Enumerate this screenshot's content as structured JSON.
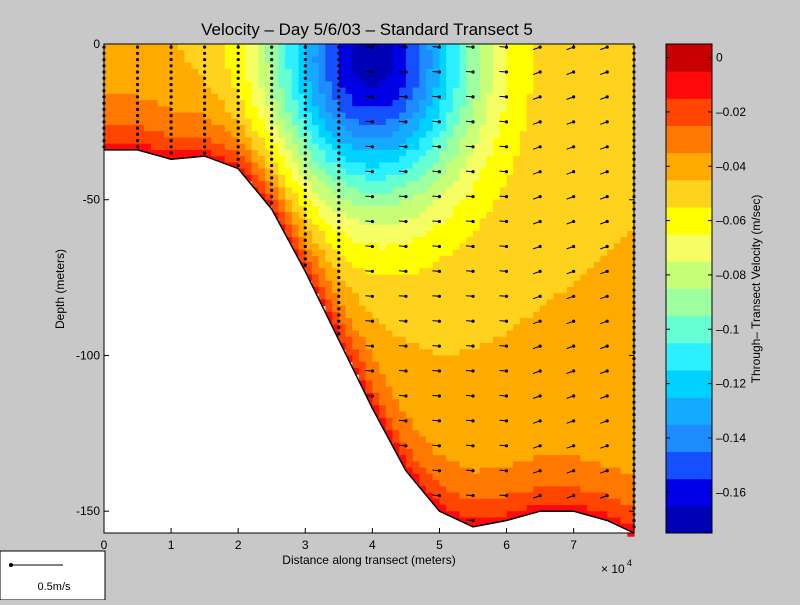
{
  "chart_data": {
    "type": "heatmap",
    "title": "Velocity – Day 5/6/03 – Standard Transect 5",
    "xlabel": "Distance along transect (meters)",
    "ylabel": "Depth (meters)",
    "x_multiplier": "× 10",
    "x_multiplier_exp": "4",
    "xlim": [
      0,
      79000
    ],
    "ylim": [
      -157,
      0
    ],
    "x_ticks": [
      0,
      10000,
      20000,
      30000,
      40000,
      50000,
      60000,
      70000
    ],
    "x_tick_labels": [
      "0",
      "1",
      "2",
      "3",
      "4",
      "5",
      "6",
      "7"
    ],
    "y_ticks": [
      0,
      -50,
      -100,
      -150
    ],
    "y_tick_labels": [
      "0",
      "-50",
      "-100",
      "-150"
    ],
    "grid": false,
    "colorbar": {
      "label": "Through– Transect Velocity (m/sec)",
      "vmin": -0.175,
      "vmax": 0.005,
      "levels": [
        -0.175,
        -0.165,
        -0.155,
        -0.145,
        -0.135,
        -0.125,
        -0.115,
        -0.105,
        -0.095,
        -0.085,
        -0.075,
        -0.065,
        -0.055,
        -0.045,
        -0.035,
        -0.025,
        -0.015,
        -0.005,
        0.005
      ],
      "ticks": [
        0,
        -0.02,
        -0.04,
        -0.06,
        -0.08,
        -0.1,
        -0.12,
        -0.14,
        -0.16
      ],
      "tick_labels": [
        "0",
        "–0.02",
        "–0.04",
        "–0.06",
        "–0.08",
        "–0.1",
        "–0.12",
        "–0.14",
        "–0.16"
      ],
      "colors": [
        "#0000b4",
        "#0000e6",
        "#1450ff",
        "#1e8cff",
        "#14aaff",
        "#00d2ff",
        "#2cf0ff",
        "#64ffd2",
        "#9cffa0",
        "#c8ff78",
        "#f5ff64",
        "#ffff00",
        "#ffd21e",
        "#ffaa00",
        "#ff7800",
        "#ff4600",
        "#ff0a0a",
        "#c80000"
      ]
    },
    "bottom_profile": {
      "x": [
        0,
        5000,
        10000,
        15000,
        20000,
        25000,
        30000,
        35000,
        40000,
        45000,
        50000,
        55000,
        60000,
        65000,
        70000,
        75000,
        79000
      ],
      "depth": [
        -34,
        -34,
        -37,
        -36,
        -40,
        -53,
        -73,
        -95,
        -117,
        -137,
        -150,
        -155,
        -153,
        -150,
        -150,
        -153,
        -157
      ]
    },
    "velocity_model": {
      "core_x": 40000,
      "core_depth": -5,
      "core_value": -0.17,
      "x_scale": 15000,
      "depth_scale": 45,
      "deep_mid_value": -0.045,
      "near_bottom_value": -0.01
    },
    "arrow_legend": {
      "label": "0.5m/s"
    }
  }
}
